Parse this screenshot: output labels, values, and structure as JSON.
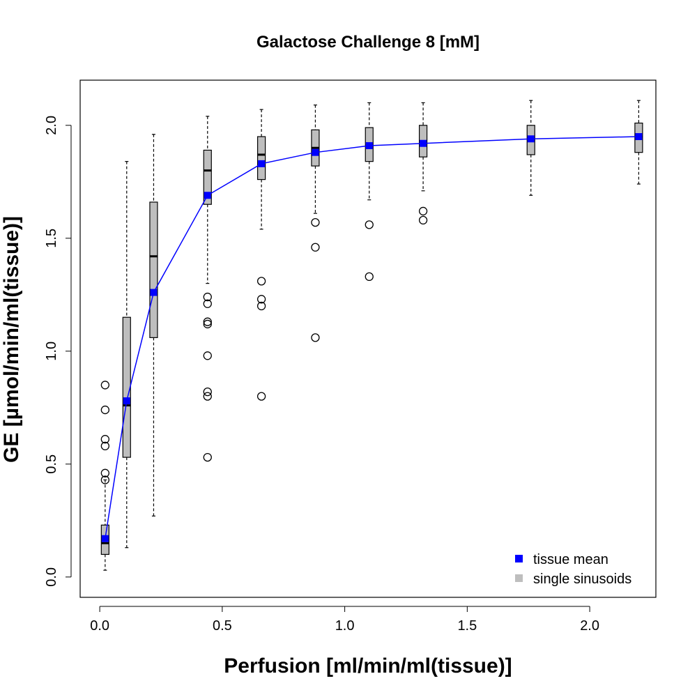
{
  "chart_data": {
    "type": "box",
    "title": "Galactose Challenge 8 [mM]",
    "xlabel": "Perfusion [ml/min/ml(tissue)]",
    "ylabel": "GE [µmol/min/ml(tissue)]",
    "xlim": [
      -0.08,
      2.27
    ],
    "ylim": [
      -0.09,
      2.2
    ],
    "xticks": [
      0.0,
      0.5,
      1.0,
      1.5,
      2.0
    ],
    "xtick_labels": [
      "0.0",
      "0.5",
      "1.0",
      "1.5",
      "2.0"
    ],
    "yticks": [
      0.0,
      0.5,
      1.0,
      1.5,
      2.0
    ],
    "ytick_labels": [
      "0.0",
      "0.5",
      "1.0",
      "1.5",
      "2.0"
    ],
    "grid": false,
    "legend_position": "bottom-right",
    "legend": [
      {
        "label": "tissue mean",
        "color": "#0000ff"
      },
      {
        "label": "single sinusoids",
        "color": "#bebebe"
      }
    ],
    "box_color": "#bebebe",
    "mean_color": "#0000ff",
    "boxes": [
      {
        "x": 0.022,
        "whisker_low": 0.03,
        "q1": 0.1,
        "median": 0.15,
        "q3": 0.23,
        "whisker_high": 0.43,
        "outliers": [
          0.43,
          0.46,
          0.58,
          0.61,
          0.74,
          0.85
        ]
      },
      {
        "x": 0.11,
        "whisker_low": 0.13,
        "q1": 0.53,
        "median": 0.76,
        "q3": 1.15,
        "whisker_high": 1.84,
        "outliers": []
      },
      {
        "x": 0.22,
        "whisker_low": 0.27,
        "q1": 1.06,
        "median": 1.42,
        "q3": 1.66,
        "whisker_high": 1.96,
        "outliers": []
      },
      {
        "x": 0.44,
        "whisker_low": 1.3,
        "q1": 1.65,
        "median": 1.8,
        "q3": 1.89,
        "whisker_high": 2.04,
        "outliers": [
          0.53,
          0.8,
          0.82,
          0.98,
          1.12,
          1.13,
          1.21,
          1.24
        ]
      },
      {
        "x": 0.66,
        "whisker_low": 1.54,
        "q1": 1.76,
        "median": 1.87,
        "q3": 1.95,
        "whisker_high": 2.07,
        "outliers": [
          0.8,
          1.2,
          1.23,
          1.31
        ]
      },
      {
        "x": 0.88,
        "whisker_low": 1.61,
        "q1": 1.82,
        "median": 1.9,
        "q3": 1.98,
        "whisker_high": 2.09,
        "outliers": [
          1.06,
          1.46,
          1.57
        ]
      },
      {
        "x": 1.1,
        "whisker_low": 1.67,
        "q1": 1.84,
        "median": 1.91,
        "q3": 1.99,
        "whisker_high": 2.1,
        "outliers": [
          1.33,
          1.56
        ]
      },
      {
        "x": 1.32,
        "whisker_low": 1.71,
        "q1": 1.86,
        "median": 1.93,
        "q3": 2.0,
        "whisker_high": 2.1,
        "outliers": [
          1.58,
          1.62
        ]
      },
      {
        "x": 1.76,
        "whisker_low": 1.69,
        "q1": 1.87,
        "median": 1.94,
        "q3": 2.0,
        "whisker_high": 2.11,
        "outliers": []
      },
      {
        "x": 2.2,
        "whisker_low": 1.74,
        "q1": 1.88,
        "median": 1.95,
        "q3": 2.01,
        "whisker_high": 2.11,
        "outliers": []
      }
    ],
    "series": [
      {
        "name": "tissue mean",
        "x": [
          0.022,
          0.11,
          0.22,
          0.44,
          0.66,
          0.88,
          1.1,
          1.32,
          1.76,
          2.2
        ],
        "values": [
          0.17,
          0.78,
          1.26,
          1.69,
          1.83,
          1.88,
          1.91,
          1.92,
          1.94,
          1.95
        ]
      }
    ]
  }
}
